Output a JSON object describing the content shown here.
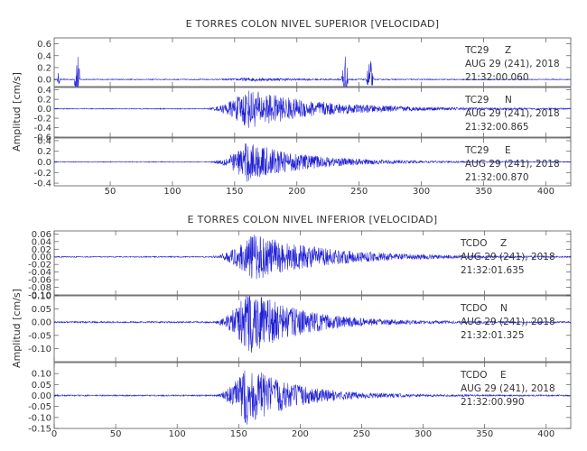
{
  "chart_data": [
    {
      "type": "line",
      "title": "E TORRES COLON NIVEL SUPERIOR [VELOCIDAD]",
      "ylabel": "Amplitud [cm/s]",
      "xlabel": "",
      "xlim": [
        5,
        420
      ],
      "x_ticks": [
        "50",
        "100",
        "150",
        "200",
        "250",
        "300",
        "350",
        "400"
      ],
      "line_color": "#1f1fd6",
      "panels": [
        {
          "station": "TC29",
          "component": "Z",
          "date": "AUG 29 (241), 2018",
          "time": "21:32:00.060",
          "ylim": [
            -0.12,
            0.7
          ],
          "y_ticks": [
            "0.6",
            "0.4",
            "0.2",
            "0.0"
          ],
          "shape": {
            "noise": 0.008,
            "bursts": [
              {
                "t": 8.5,
                "amp": 0.12,
                "dur": 1.5
              },
              {
                "t": 23.5,
                "amp": 0.62,
                "dur": 2.5
              },
              {
                "t": 238.5,
                "amp": 0.55,
                "dur": 3
              },
              {
                "t": 258.5,
                "amp": 0.45,
                "dur": 3
              }
            ],
            "quake": {
              "t0": 130,
              "peak": 160,
              "amp": 0.025,
              "decay": 40
            }
          }
        },
        {
          "station": "TC29",
          "component": "N",
          "date": "AUG 29 (241), 2018",
          "time": "21:32:00.865",
          "ylim": [
            -0.6,
            0.45
          ],
          "y_ticks": [
            "0.4",
            "0.2",
            "0.0",
            "-0.2",
            "-0.4",
            "-0.6"
          ],
          "shape": {
            "noise": 0.01,
            "bursts": [],
            "quake": {
              "t0": 125,
              "peak": 160,
              "amp": 0.42,
              "decay": 55
            }
          }
        },
        {
          "station": "TC29",
          "component": "E",
          "date": "AUG 29 (241), 2018",
          "time": "21:32:00.870",
          "ylim": [
            -0.45,
            0.45
          ],
          "y_ticks": [
            "0.4",
            "0.2",
            "0.0",
            "-0.2",
            "-0.4"
          ],
          "shape": {
            "noise": 0.008,
            "bursts": [],
            "quake": {
              "t0": 128,
              "peak": 160,
              "amp": 0.38,
              "decay": 45
            }
          }
        }
      ]
    },
    {
      "type": "line",
      "title": "E TORRES COLON NIVEL INFERIOR [VELOCIDAD]",
      "ylabel": "Amplitud [cm/s]",
      "xlabel": "",
      "xlim": [
        0,
        420
      ],
      "x_ticks": [
        "0",
        "50",
        "100",
        "150",
        "200",
        "250",
        "300",
        "350",
        "400"
      ],
      "line_color": "#1f1fd6",
      "panels": [
        {
          "station": "TCDO",
          "component": "Z",
          "date": "AUG 29 (241), 2018",
          "time": "21:32:01.635",
          "ylim": [
            -0.1,
            0.068
          ],
          "y_ticks": [
            "0.06",
            "0.04",
            "0.02",
            "0.00",
            "-0.02",
            "-0.04",
            "-0.06",
            "-0.08",
            "-0.10"
          ],
          "shape": {
            "noise": 0.0015,
            "bursts": [],
            "quake": {
              "t0": 125,
              "peak": 162,
              "amp": 0.062,
              "decay": 55
            }
          }
        },
        {
          "station": "TCDO",
          "component": "N",
          "date": "AUG 29 (241), 2018",
          "time": "21:32:01.325",
          "ylim": [
            -0.15,
            0.1
          ],
          "y_ticks": [
            "0.10",
            "0.05",
            "0.00",
            "-0.05",
            "-0.10"
          ],
          "shape": {
            "noise": 0.003,
            "bursts": [],
            "quake": {
              "t0": 128,
              "peak": 158,
              "amp": 0.13,
              "decay": 40
            }
          }
        },
        {
          "station": "TCDO",
          "component": "E",
          "date": "AUG 29 (241), 2018",
          "time": "21:32:00.990",
          "ylim": [
            -0.15,
            0.15
          ],
          "y_ticks": [
            "0.10",
            "0.05",
            "0.00",
            "-0.05",
            "-0.10",
            "-0.15"
          ],
          "shape": {
            "noise": 0.003,
            "bursts": [],
            "quake": {
              "t0": 128,
              "peak": 157,
              "amp": 0.14,
              "decay": 38
            }
          }
        }
      ]
    }
  ]
}
